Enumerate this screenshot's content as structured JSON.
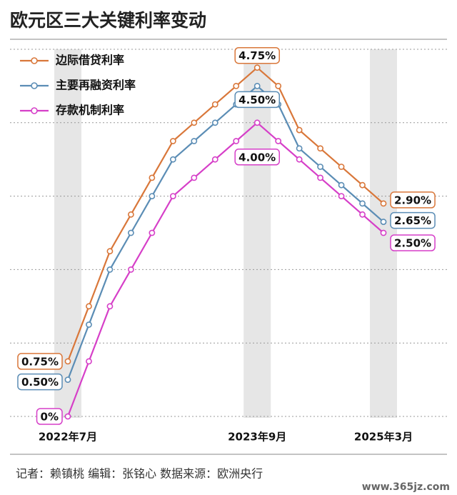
{
  "chart_data": {
    "type": "line",
    "title": "欧元区三大关键利率变动",
    "categories": [
      "2022年7月",
      null,
      null,
      null,
      null,
      null,
      null,
      null,
      null,
      "2023年9月",
      null,
      null,
      null,
      null,
      null,
      "2025年3月"
    ],
    "series": [
      {
        "name": "边际借贷利率",
        "color": "#d9773a",
        "values": [
          0.75,
          1.5,
          2.25,
          2.75,
          3.25,
          3.75,
          4.0,
          4.25,
          4.5,
          4.75,
          4.5,
          3.9,
          3.65,
          3.4,
          3.15,
          2.9
        ],
        "value_labels": [
          "0.75%",
          null,
          null,
          null,
          null,
          null,
          null,
          null,
          null,
          "4.75%",
          null,
          null,
          null,
          null,
          null,
          "2.90%"
        ]
      },
      {
        "name": "主要再融资利率",
        "color": "#5b8db5",
        "values": [
          0.5,
          1.25,
          2.0,
          2.5,
          3.0,
          3.5,
          3.75,
          4.0,
          4.25,
          4.5,
          4.25,
          3.65,
          3.4,
          3.15,
          2.9,
          2.65
        ],
        "value_labels": [
          "0.50%",
          null,
          null,
          null,
          null,
          null,
          null,
          null,
          null,
          "4.50%",
          null,
          null,
          null,
          null,
          null,
          "2.65%"
        ]
      },
      {
        "name": "存款机制利率",
        "color": "#d63fc8",
        "values": [
          0,
          0.75,
          1.5,
          2.0,
          2.5,
          3.0,
          3.25,
          3.5,
          3.75,
          4.0,
          3.75,
          3.5,
          3.25,
          3.0,
          2.75,
          2.5
        ],
        "value_labels": [
          "0%",
          null,
          null,
          null,
          null,
          null,
          null,
          null,
          null,
          "4.00%",
          null,
          null,
          null,
          null,
          null,
          "2.50%"
        ]
      }
    ],
    "ylim": [
      0,
      5
    ],
    "yticks": [
      0,
      1,
      2,
      3,
      4,
      5
    ],
    "grid": true,
    "note": "记者：赖镇桃   编辑：张铭心   数据来源：欧洲央行",
    "watermark": "www.365jz.com"
  }
}
